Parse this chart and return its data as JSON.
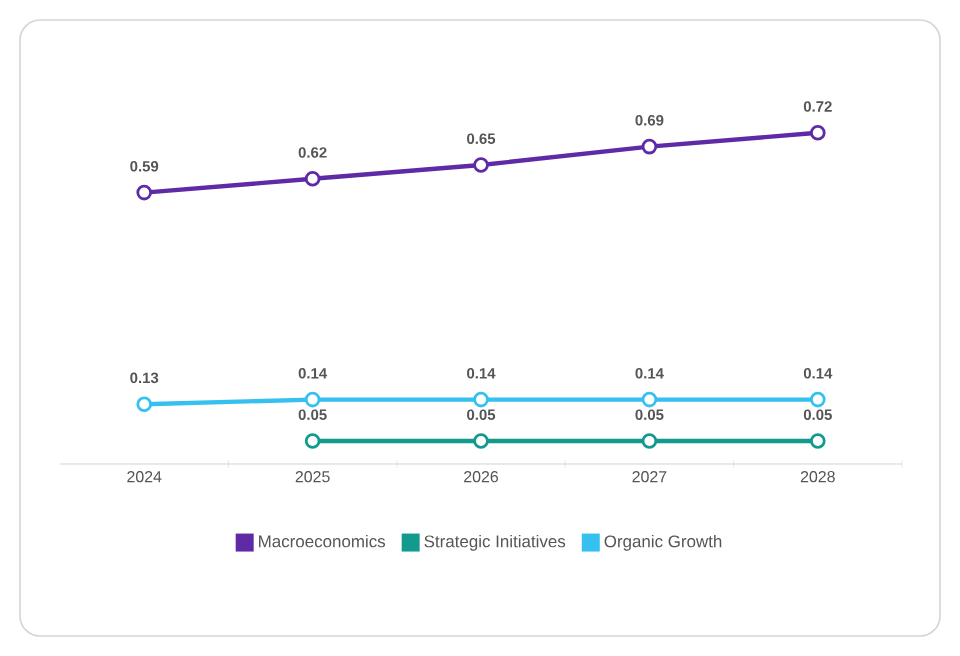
{
  "chart_data": {
    "type": "line",
    "categories": [
      "2024",
      "2025",
      "2026",
      "2027",
      "2028"
    ],
    "series": [
      {
        "name": "Macroeconomics",
        "color": "#5f2aa6",
        "values": [
          0.59,
          0.62,
          0.65,
          0.69,
          0.72
        ]
      },
      {
        "name": "Strategic Initiatives",
        "color": "#139a8f",
        "values": [
          null,
          0.05,
          0.05,
          0.05,
          0.05
        ]
      },
      {
        "name": "Organic Growth",
        "color": "#35c0f0",
        "values": [
          0.13,
          0.14,
          0.14,
          0.14,
          0.14
        ]
      }
    ],
    "tick_labels": "x",
    "data_labels": true,
    "marker": "circle",
    "line_style": "solid",
    "legend": "bottom",
    "grid": false
  }
}
